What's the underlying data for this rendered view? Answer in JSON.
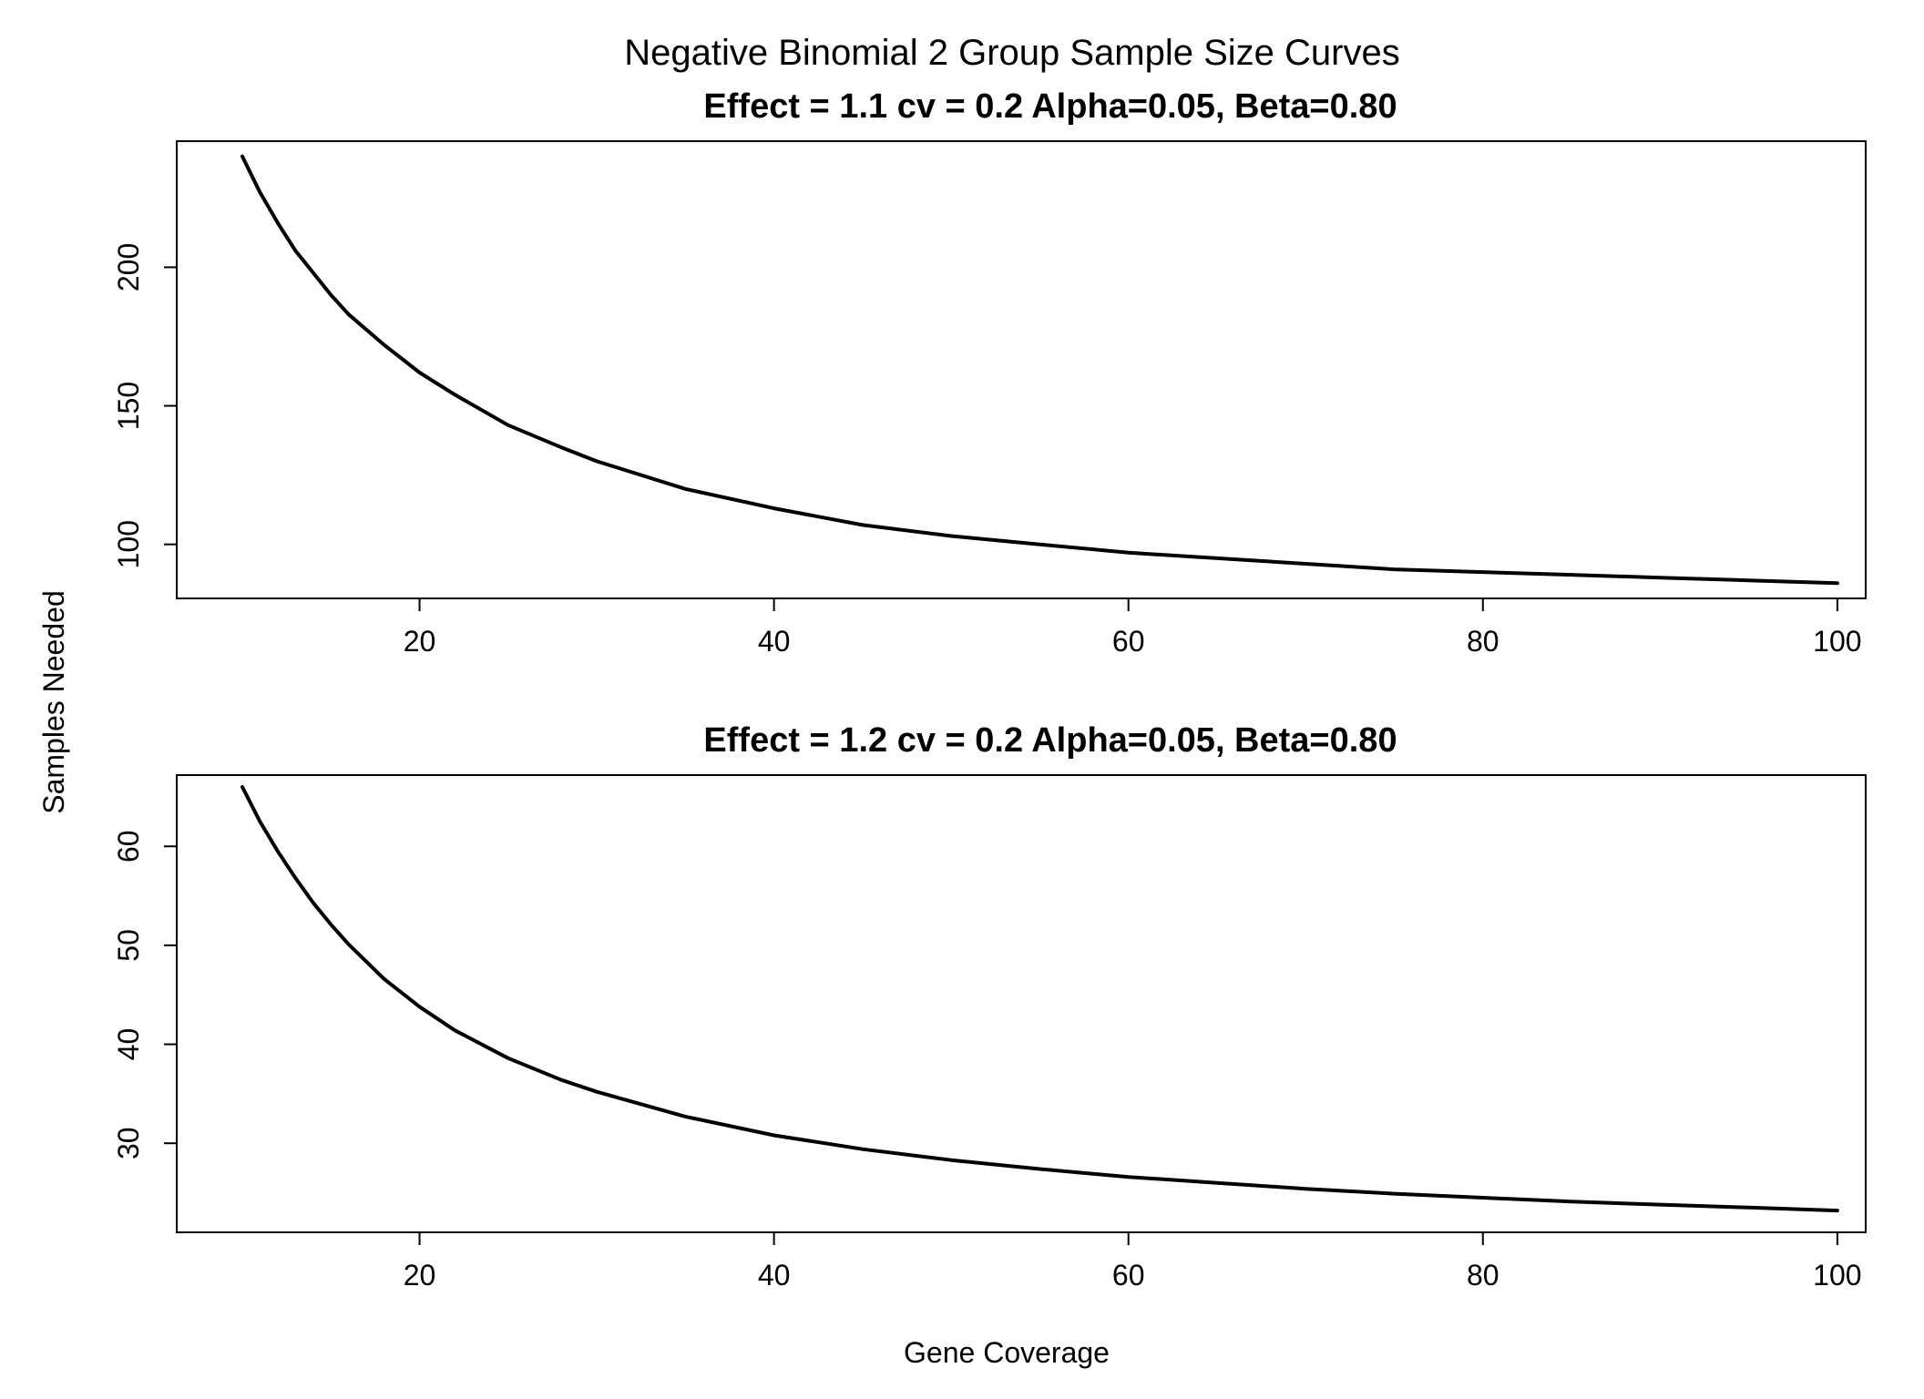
{
  "title": "Negative Binomial 2 Group Sample Size Curves",
  "xlabel": "Gene Coverage",
  "ylabel": "Samples Needed",
  "chart_data": [
    {
      "type": "line",
      "title": "Effect = 1.1 cv = 0.2 Alpha=0.05, Beta=0.80",
      "xlim": [
        6.3,
        101.6
      ],
      "ylim": [
        80.5,
        245.5
      ],
      "xticks": [
        20,
        40,
        60,
        80,
        100
      ],
      "yticks": [
        100,
        150,
        200
      ],
      "grid": false,
      "x": [
        10,
        11,
        12,
        13,
        14,
        15,
        16,
        18,
        20,
        22,
        25,
        28,
        30,
        35,
        40,
        45,
        50,
        55,
        60,
        65,
        70,
        75,
        80,
        85,
        90,
        95,
        100
      ],
      "y": [
        240,
        227,
        216,
        206,
        198,
        190,
        183,
        172,
        162,
        154,
        143,
        135,
        130,
        120,
        113,
        107,
        103,
        100,
        97,
        95,
        93,
        91,
        90,
        89,
        88,
        87,
        86
      ]
    },
    {
      "type": "line",
      "title": "Effect = 1.2 cv = 0.2 Alpha=0.05, Beta=0.80",
      "xlim": [
        6.3,
        101.6
      ],
      "ylim": [
        21,
        67.2
      ],
      "xticks": [
        20,
        40,
        60,
        80,
        100
      ],
      "yticks": [
        30,
        40,
        50,
        60
      ],
      "grid": false,
      "x": [
        10,
        11,
        12,
        13,
        14,
        15,
        16,
        18,
        20,
        22,
        25,
        28,
        30,
        35,
        40,
        45,
        50,
        55,
        60,
        65,
        70,
        75,
        80,
        85,
        90,
        95,
        100
      ],
      "y": [
        66,
        62.5,
        59.5,
        56.8,
        54.3,
        52.1,
        50.1,
        46.6,
        43.8,
        41.4,
        38.6,
        36.4,
        35.2,
        32.7,
        30.8,
        29.4,
        28.3,
        27.4,
        26.6,
        26.0,
        25.4,
        24.9,
        24.5,
        24.1,
        23.8,
        23.5,
        23.2
      ]
    }
  ]
}
